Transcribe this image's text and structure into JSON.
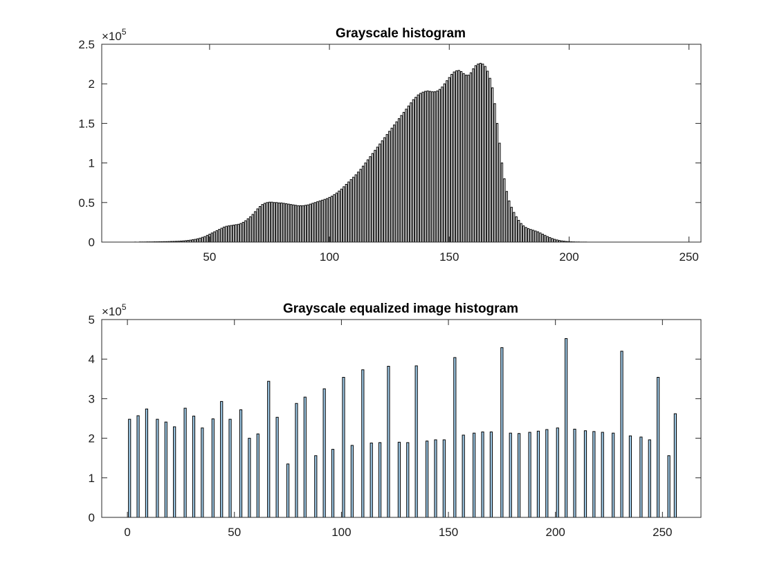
{
  "chart_data": [
    {
      "type": "bar",
      "title": "Grayscale histogram",
      "xlabel": "",
      "ylabel": "",
      "xlim": [
        5,
        255
      ],
      "ylim": [
        0,
        250000
      ],
      "xticks": [
        50,
        100,
        150,
        200,
        250
      ],
      "yticks": [
        0,
        50000,
        100000,
        150000,
        200000,
        250000
      ],
      "ytick_labels": [
        "0",
        "0.5",
        "1",
        "1.5",
        "2",
        "2.5"
      ],
      "exponent": "5",
      "bar_color": "#ffffff",
      "edge_color": "#000000",
      "x_start": 16,
      "values": [
        0,
        0,
        0,
        100,
        0,
        200,
        200,
        200,
        300,
        300,
        300,
        400,
        400,
        500,
        500,
        600,
        600,
        700,
        800,
        900,
        1000,
        1100,
        1300,
        1500,
        1800,
        2100,
        2500,
        3000,
        3500,
        4200,
        5000,
        6000,
        7000,
        8500,
        10000,
        11500,
        13000,
        14500,
        16000,
        17500,
        19000,
        20000,
        20500,
        21000,
        21500,
        22000,
        22500,
        23500,
        25000,
        27000,
        29500,
        32000,
        35000,
        38500,
        42000,
        45000,
        47500,
        49000,
        50000,
        50500,
        50500,
        50000,
        50000,
        49500,
        49500,
        49000,
        48500,
        48000,
        47500,
        47000,
        46500,
        46000,
        46000,
        46000,
        46500,
        47000,
        48000,
        49000,
        50000,
        51000,
        52000,
        53000,
        54000,
        55000,
        56500,
        58000,
        60000,
        62000,
        64500,
        67000,
        70000,
        73000,
        76000,
        79000,
        82000,
        85000,
        88500,
        92000,
        96000,
        100000,
        104000,
        108000,
        112000,
        116000,
        120000,
        124000,
        128000,
        132000,
        136000,
        140000,
        144000,
        148000,
        152000,
        156000,
        160000,
        164000,
        168000,
        172000,
        176000,
        180000,
        183000,
        186000,
        188000,
        189500,
        190500,
        191000,
        190500,
        190000,
        190000,
        191000,
        193000,
        196000,
        200000,
        204000,
        208000,
        212000,
        215000,
        216500,
        217000,
        215500,
        213000,
        211000,
        211000,
        214000,
        219000,
        223000,
        225000,
        226000,
        225000,
        222000,
        216000,
        207000,
        195000,
        175000,
        150000,
        125000,
        100000,
        80000,
        64000,
        52000,
        44000,
        37500,
        32000,
        27500,
        23500,
        20500,
        18500,
        17000,
        16000,
        15000,
        14000,
        13000,
        11500,
        10000,
        8500,
        7000,
        5700,
        4500,
        3500,
        2700,
        2000,
        1500,
        1100,
        800,
        600,
        400,
        300,
        200,
        200,
        100,
        100,
        100,
        0,
        0,
        0,
        0,
        0,
        0,
        0,
        0,
        0,
        0,
        0,
        0,
        0,
        0,
        0,
        0,
        0,
        0,
        0,
        0,
        0,
        0
      ]
    },
    {
      "type": "bar",
      "title": "Grayscale equalized image histogram",
      "xlabel": "",
      "ylabel": "",
      "xlim": [
        -12,
        268
      ],
      "ylim": [
        0,
        500000
      ],
      "xticks": [
        0,
        50,
        100,
        150,
        200,
        250
      ],
      "yticks": [
        0,
        100000,
        200000,
        300000,
        400000,
        500000
      ],
      "ytick_labels": [
        "0",
        "1",
        "2",
        "3",
        "4",
        "5"
      ],
      "exponent": "5",
      "bar_color": "#9ec9e6",
      "edge_color": "#000000",
      "x": [
        1,
        5,
        9,
        14,
        18,
        22,
        27,
        31,
        35,
        40,
        44,
        48,
        53,
        57,
        61,
        66,
        70,
        75,
        79,
        83,
        88,
        92,
        96,
        101,
        105,
        110,
        114,
        118,
        122,
        127,
        131,
        135,
        140,
        144,
        148,
        153,
        157,
        162,
        166,
        170,
        175,
        179,
        183,
        188,
        192,
        196,
        201,
        205,
        209,
        214,
        218,
        222,
        227,
        231,
        235,
        240,
        244,
        248,
        253,
        256
      ],
      "values": [
        248000,
        257000,
        274000,
        248000,
        241000,
        229000,
        276000,
        256000,
        226000,
        249000,
        293000,
        248000,
        272000,
        200000,
        211000,
        344000,
        253000,
        135000,
        288000,
        304000,
        156000,
        325000,
        172000,
        354000,
        182000,
        373000,
        188000,
        189000,
        382000,
        190000,
        189000,
        383000,
        193000,
        196000,
        196000,
        404000,
        208000,
        213000,
        216000,
        216000,
        429000,
        213000,
        212000,
        215000,
        218000,
        222000,
        226000,
        452000,
        223000,
        219000,
        217000,
        215000,
        213000,
        420000,
        206000,
        203000,
        196000,
        354000,
        156000,
        262000
      ]
    }
  ]
}
